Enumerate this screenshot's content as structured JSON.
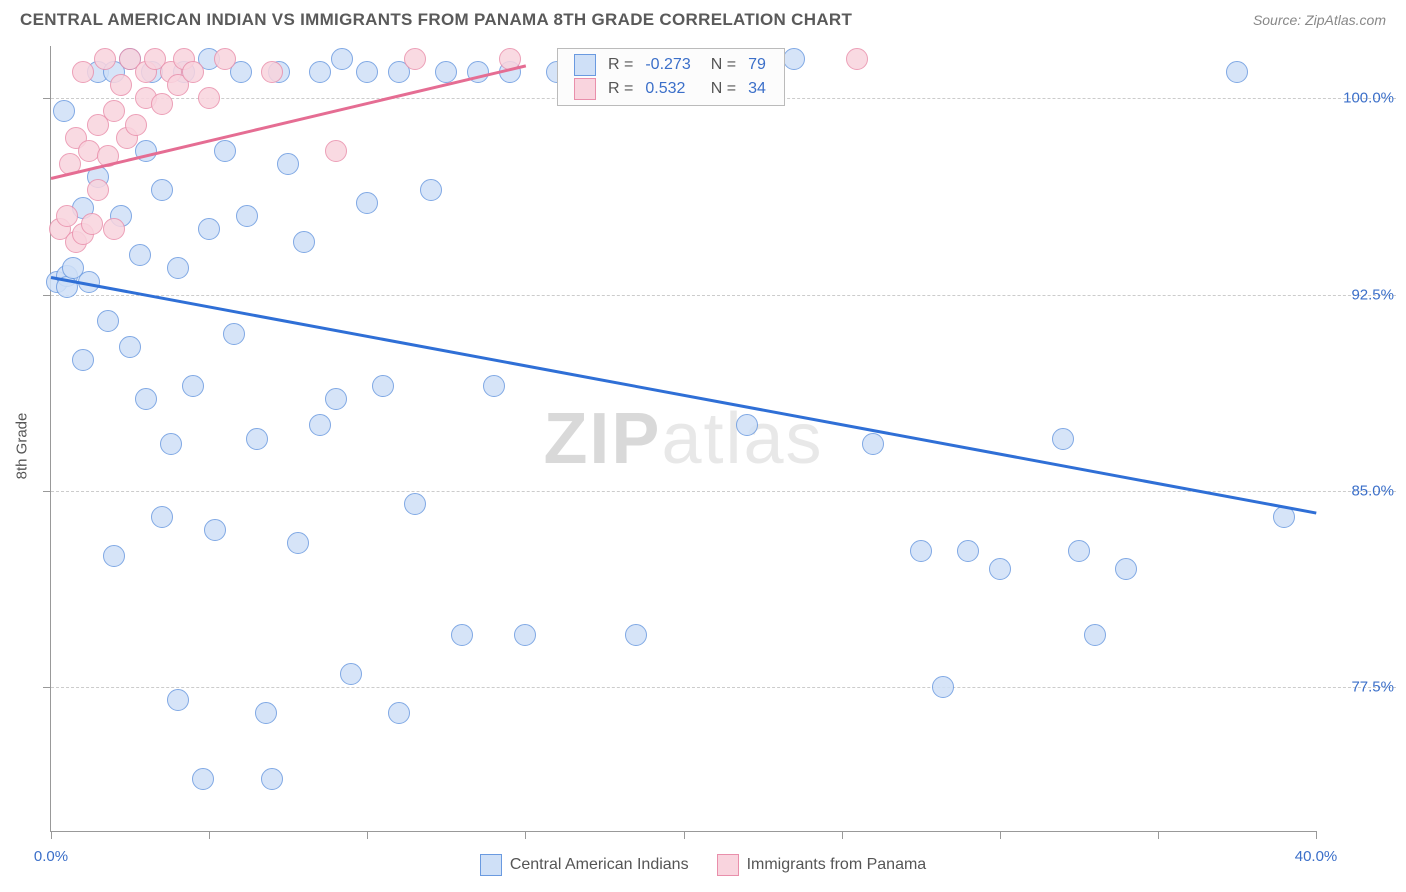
{
  "title": "CENTRAL AMERICAN INDIAN VS IMMIGRANTS FROM PANAMA 8TH GRADE CORRELATION CHART",
  "source": "Source: ZipAtlas.com",
  "y_axis_title": "8th Grade",
  "watermark": {
    "prefix": "ZIP",
    "suffix": "atlas"
  },
  "chart": {
    "type": "scatter",
    "xlim": [
      0,
      40
    ],
    "ylim": [
      72,
      102
    ],
    "x_ticks": [
      0,
      5,
      10,
      15,
      20,
      25,
      30,
      35,
      40
    ],
    "x_tick_labels": {
      "0": "0.0%",
      "40": "40.0%"
    },
    "y_gridlines": [
      77.5,
      85.0,
      92.5,
      100.0
    ],
    "y_tick_labels": [
      "77.5%",
      "85.0%",
      "92.5%",
      "100.0%"
    ],
    "background_color": "#ffffff",
    "grid_color": "#cccccc",
    "axis_color": "#999999",
    "marker_radius": 11,
    "marker_border_width": 1.5,
    "series": [
      {
        "name": "Central American Indians",
        "fill": "#cfe0f7",
        "stroke": "#6a9ae0",
        "trend_color": "#2f6fd6",
        "r_label": "R =",
        "r_value": "-0.273",
        "n_label": "N =",
        "n_value": "79",
        "trend": {
          "x1": 0,
          "y1": 93.2,
          "x2": 40,
          "y2": 84.2
        },
        "points": [
          [
            0.2,
            93.0
          ],
          [
            0.4,
            99.5
          ],
          [
            0.5,
            93.2
          ],
          [
            0.5,
            92.8
          ],
          [
            0.7,
            93.5
          ],
          [
            1.0,
            95.8
          ],
          [
            1.0,
            90.0
          ],
          [
            1.2,
            93.0
          ],
          [
            1.5,
            97.0
          ],
          [
            1.5,
            101.0
          ],
          [
            1.8,
            91.5
          ],
          [
            2.0,
            101.0
          ],
          [
            2.0,
            82.5
          ],
          [
            2.2,
            95.5
          ],
          [
            2.5,
            90.5
          ],
          [
            2.5,
            101.5
          ],
          [
            2.8,
            94.0
          ],
          [
            3.0,
            88.5
          ],
          [
            3.0,
            98.0
          ],
          [
            3.2,
            101.0
          ],
          [
            3.5,
            84.0
          ],
          [
            3.5,
            96.5
          ],
          [
            3.8,
            86.8
          ],
          [
            4.0,
            93.5
          ],
          [
            4.0,
            77.0
          ],
          [
            4.2,
            101.0
          ],
          [
            4.5,
            89.0
          ],
          [
            4.8,
            74.0
          ],
          [
            5.0,
            95.0
          ],
          [
            5.0,
            101.5
          ],
          [
            5.2,
            83.5
          ],
          [
            5.5,
            98.0
          ],
          [
            5.8,
            91.0
          ],
          [
            6.0,
            101.0
          ],
          [
            6.2,
            95.5
          ],
          [
            6.5,
            87.0
          ],
          [
            6.8,
            76.5
          ],
          [
            7.0,
            74.0
          ],
          [
            7.2,
            101.0
          ],
          [
            7.5,
            97.5
          ],
          [
            7.8,
            83.0
          ],
          [
            8.0,
            94.5
          ],
          [
            8.5,
            87.5
          ],
          [
            8.5,
            101.0
          ],
          [
            9.0,
            88.5
          ],
          [
            9.2,
            101.5
          ],
          [
            9.5,
            78.0
          ],
          [
            10.0,
            101.0
          ],
          [
            10.0,
            96.0
          ],
          [
            10.5,
            89.0
          ],
          [
            11.0,
            76.5
          ],
          [
            11.0,
            101.0
          ],
          [
            11.5,
            84.5
          ],
          [
            12.0,
            96.5
          ],
          [
            12.5,
            101.0
          ],
          [
            13.0,
            79.5
          ],
          [
            13.5,
            101.0
          ],
          [
            14.0,
            89.0
          ],
          [
            14.5,
            101.0
          ],
          [
            15.0,
            79.5
          ],
          [
            16.0,
            101.0
          ],
          [
            17.0,
            101.5
          ],
          [
            18.5,
            101.0
          ],
          [
            18.5,
            79.5
          ],
          [
            20.0,
            101.0
          ],
          [
            21.0,
            101.0
          ],
          [
            22.0,
            87.5
          ],
          [
            23.5,
            101.5
          ],
          [
            26.0,
            86.8
          ],
          [
            27.5,
            82.7
          ],
          [
            28.2,
            77.5
          ],
          [
            29.0,
            82.7
          ],
          [
            30.0,
            82.0
          ],
          [
            32.0,
            87.0
          ],
          [
            32.5,
            82.7
          ],
          [
            33.0,
            79.5
          ],
          [
            34.0,
            82.0
          ],
          [
            37.5,
            101.0
          ],
          [
            39.0,
            84.0
          ]
        ]
      },
      {
        "name": "Immigrants from Panama",
        "fill": "#f9d4de",
        "stroke": "#e98fab",
        "trend_color": "#e56d93",
        "r_label": "R =",
        "r_value": "0.532",
        "n_label": "N =",
        "n_value": "34",
        "trend": {
          "x1": 0,
          "y1": 97.0,
          "x2": 15,
          "y2": 101.3
        },
        "points": [
          [
            0.3,
            95.0
          ],
          [
            0.5,
            95.5
          ],
          [
            0.6,
            97.5
          ],
          [
            0.8,
            94.5
          ],
          [
            0.8,
            98.5
          ],
          [
            1.0,
            94.8
          ],
          [
            1.0,
            101.0
          ],
          [
            1.2,
            98.0
          ],
          [
            1.3,
            95.2
          ],
          [
            1.5,
            99.0
          ],
          [
            1.5,
            96.5
          ],
          [
            1.7,
            101.5
          ],
          [
            1.8,
            97.8
          ],
          [
            2.0,
            99.5
          ],
          [
            2.0,
            95.0
          ],
          [
            2.2,
            100.5
          ],
          [
            2.4,
            98.5
          ],
          [
            2.5,
            101.5
          ],
          [
            2.7,
            99.0
          ],
          [
            3.0,
            101.0
          ],
          [
            3.0,
            100.0
          ],
          [
            3.3,
            101.5
          ],
          [
            3.5,
            99.8
          ],
          [
            3.8,
            101.0
          ],
          [
            4.0,
            100.5
          ],
          [
            4.2,
            101.5
          ],
          [
            4.5,
            101.0
          ],
          [
            5.0,
            100.0
          ],
          [
            5.5,
            101.5
          ],
          [
            7.0,
            101.0
          ],
          [
            9.0,
            98.0
          ],
          [
            11.5,
            101.5
          ],
          [
            14.5,
            101.5
          ],
          [
            25.5,
            101.5
          ]
        ]
      }
    ]
  },
  "legend_top": {
    "text_color": "#555555",
    "value_color": "#3b6fc9"
  },
  "legend_bottom": {
    "items": [
      "Central American Indians",
      "Immigrants from Panama"
    ]
  }
}
